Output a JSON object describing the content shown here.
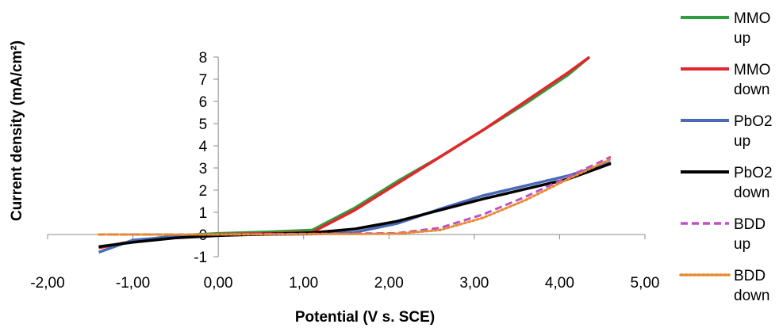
{
  "chart_data": {
    "type": "line",
    "title": "",
    "xlabel": "Potential (V s. SCE)",
    "ylabel": "Current density (mA/cm²)",
    "xlim": [
      -2.0,
      5.0
    ],
    "ylim": [
      -1,
      8
    ],
    "xticks": [
      -2,
      -1,
      0,
      1,
      2,
      3,
      4,
      5
    ],
    "xtick_labels": [
      "-2,00",
      "-1,00",
      "0,00",
      "1,00",
      "2,00",
      "3,00",
      "4,00",
      "5,00"
    ],
    "yticks": [
      -1,
      0,
      1,
      2,
      3,
      4,
      5,
      6,
      7,
      8
    ],
    "ytick_labels": [
      "-1",
      "0",
      "1",
      "2",
      "3",
      "4",
      "5",
      "6",
      "7",
      "8"
    ],
    "grid": false,
    "legend_position": "right",
    "series": [
      {
        "name": "MMO up",
        "legend_lines": [
          "MMO",
          "up"
        ],
        "color": "#2e9e40",
        "dash": "solid",
        "x": [
          -1.4,
          -1.0,
          -0.5,
          0.0,
          0.6,
          1.1,
          1.6,
          2.1,
          2.6,
          3.1,
          3.6,
          4.1,
          4.35
        ],
        "y": [
          -0.6,
          -0.3,
          -0.05,
          0.05,
          0.12,
          0.2,
          1.2,
          2.4,
          3.5,
          4.7,
          5.9,
          7.2,
          8.0
        ]
      },
      {
        "name": "MMO down",
        "legend_lines": [
          "MMO",
          "down"
        ],
        "color": "#e3262b",
        "dash": "solid",
        "x": [
          -1.4,
          -1.0,
          -0.5,
          0.0,
          0.6,
          1.1,
          1.6,
          2.1,
          2.6,
          3.1,
          3.6,
          4.1,
          4.35
        ],
        "y": [
          -0.6,
          -0.3,
          -0.1,
          0.0,
          0.05,
          0.1,
          1.1,
          2.3,
          3.5,
          4.7,
          6.0,
          7.3,
          8.0
        ]
      },
      {
        "name": "PbO2 up",
        "legend_lines": [
          "PbO2",
          "up"
        ],
        "color": "#4a6ab8",
        "dash": "solid",
        "x": [
          -1.4,
          -1.0,
          -0.5,
          0.0,
          0.6,
          1.1,
          1.6,
          2.1,
          2.6,
          3.1,
          3.6,
          4.1,
          4.6
        ],
        "y": [
          -0.8,
          -0.25,
          -0.1,
          -0.03,
          0.0,
          0.02,
          0.1,
          0.5,
          1.15,
          1.75,
          2.2,
          2.65,
          3.25
        ]
      },
      {
        "name": "PbO2 down",
        "legend_lines": [
          "PbO2",
          "down"
        ],
        "color": "#000000",
        "dash": "solid",
        "x": [
          -1.4,
          -1.0,
          -0.5,
          0.0,
          0.6,
          1.1,
          1.6,
          2.1,
          2.6,
          3.1,
          3.6,
          4.1,
          4.6
        ],
        "y": [
          -0.55,
          -0.35,
          -0.15,
          -0.05,
          0.02,
          0.08,
          0.25,
          0.6,
          1.1,
          1.6,
          2.05,
          2.5,
          3.2
        ]
      },
      {
        "name": "BDD up",
        "legend_lines": [
          "BDD",
          "up"
        ],
        "color": "#c050c8",
        "dash": "dashed",
        "x": [
          -1.4,
          -1.0,
          -0.5,
          0.0,
          0.6,
          1.1,
          1.6,
          2.1,
          2.6,
          3.1,
          3.6,
          4.1,
          4.6
        ],
        "y": [
          0.0,
          0.0,
          0.0,
          0.0,
          0.02,
          0.03,
          0.04,
          0.06,
          0.3,
          0.9,
          1.7,
          2.6,
          3.5
        ]
      },
      {
        "name": "BDD down",
        "legend_lines": [
          "BDD",
          "down"
        ],
        "color": "#e88a30",
        "dash": "dotted",
        "x": [
          -1.4,
          -1.0,
          -0.5,
          0.0,
          0.6,
          1.1,
          1.6,
          2.1,
          2.6,
          3.1,
          3.6,
          4.1,
          4.6
        ],
        "y": [
          0.0,
          0.0,
          0.0,
          0.0,
          0.01,
          0.02,
          0.02,
          0.04,
          0.2,
          0.75,
          1.55,
          2.5,
          3.4
        ]
      }
    ]
  }
}
